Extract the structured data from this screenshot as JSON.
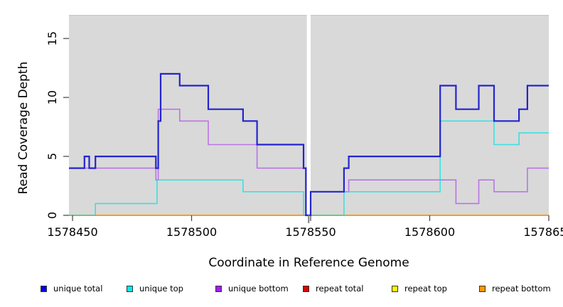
{
  "chart_data": {
    "type": "line",
    "subtype": "step",
    "title": "",
    "xlabel": "Coordinate in Reference Genome",
    "ylabel": "Read Coverage Depth",
    "xlim": [
      1578448.5,
      1578650
    ],
    "ylim": [
      0,
      17
    ],
    "x_ticks": [
      1578450,
      1578500,
      1578550,
      1578600,
      1578650
    ],
    "y_ticks": [
      0,
      5,
      10,
      15
    ],
    "grid": false,
    "legend_position": "bottom",
    "panel_color": "#d9d9d9",
    "panel_top_edge_color": "#c4c4c4",
    "gap": {
      "from": 1578548.4,
      "to": 1578550.0,
      "note": "white vertical no-data stripe through panel"
    },
    "series": [
      {
        "name": "repeat total",
        "line_color": "#DD0000",
        "opacity": 1,
        "width": 1.4,
        "steps": [
          [
            1578448.5,
            0
          ]
        ]
      },
      {
        "name": "repeat top",
        "line_color": "#F0F000",
        "opacity": 1,
        "width": 1.4,
        "steps": [
          [
            1578448.5,
            0
          ]
        ]
      },
      {
        "name": "repeat bottom",
        "line_color": "#FF9912",
        "opacity": 1,
        "width": 1.6,
        "steps": [
          [
            1578448.5,
            0
          ]
        ]
      },
      {
        "name": "unique bottom",
        "line_color": "#A020F0",
        "opacity": 0.55,
        "width": 1.6,
        "steps": [
          [
            1578448.5,
            4
          ],
          [
            1578485,
            3
          ],
          [
            1578486,
            9
          ],
          [
            1578495,
            8
          ],
          [
            1578507,
            6
          ],
          [
            1578527.5,
            4
          ],
          [
            1578548,
            0
          ],
          [
            1578550,
            2
          ],
          [
            1578566,
            3
          ],
          [
            1578611,
            1
          ],
          [
            1578620.6,
            3
          ],
          [
            1578627,
            2
          ],
          [
            1578641,
            4
          ]
        ]
      },
      {
        "name": "unique top",
        "line_color": "#00E0E0",
        "opacity": 0.72,
        "width": 1.6,
        "steps": [
          [
            1578448.5,
            0
          ],
          [
            1578459.6,
            1
          ],
          [
            1578485.5,
            3
          ],
          [
            1578521.6,
            2
          ],
          [
            1578547,
            0
          ],
          [
            1578564,
            2
          ],
          [
            1578604.4,
            8
          ],
          [
            1578627,
            6
          ],
          [
            1578637.5,
            7
          ]
        ]
      },
      {
        "name": "unique total",
        "line_color": "#2424CE",
        "opacity": 1,
        "width": 2.2,
        "steps": [
          [
            1578448.5,
            4
          ],
          [
            1578455,
            5
          ],
          [
            1578457,
            4
          ],
          [
            1578459.6,
            5
          ],
          [
            1578485,
            4
          ],
          [
            1578486,
            8
          ],
          [
            1578487,
            12
          ],
          [
            1578495,
            11
          ],
          [
            1578507,
            9
          ],
          [
            1578521.6,
            8
          ],
          [
            1578527.5,
            6
          ],
          [
            1578547,
            4
          ],
          [
            1578548,
            0
          ],
          [
            1578550,
            2
          ],
          [
            1578564,
            4
          ],
          [
            1578566,
            5
          ],
          [
            1578604.4,
            11
          ],
          [
            1578611,
            9
          ],
          [
            1578620.6,
            11
          ],
          [
            1578627,
            8
          ],
          [
            1578637.5,
            9
          ],
          [
            1578641,
            11
          ]
        ]
      }
    ],
    "legend": [
      {
        "label": "unique total",
        "color": "#0000EE"
      },
      {
        "label": "unique top",
        "color": "#00EEEE"
      },
      {
        "label": "unique bottom",
        "color": "#A020F0"
      },
      {
        "label": "repeat total",
        "color": "#DD0000"
      },
      {
        "label": "repeat top",
        "color": "#FFFF00"
      },
      {
        "label": "repeat bottom",
        "color": "#FF9900"
      }
    ]
  }
}
